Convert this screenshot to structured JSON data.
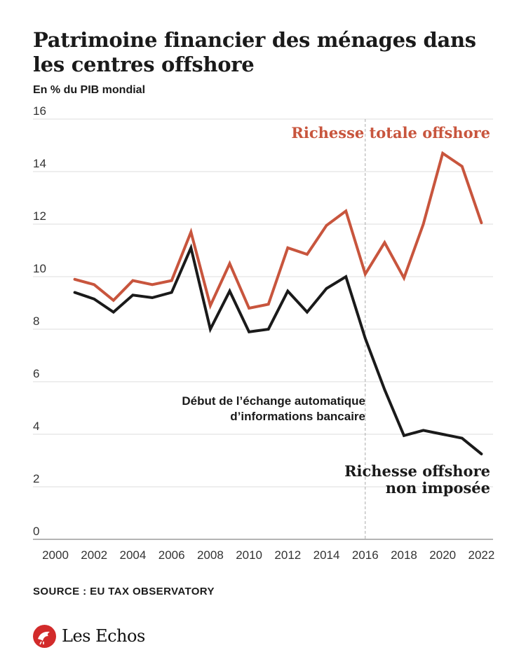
{
  "header": {
    "title": "Patrimoine financier des ménages dans les centres offshore",
    "subtitle": "En % du PIB mondial"
  },
  "chart_data": {
    "type": "line",
    "x_ticks": [
      "2000",
      "2002",
      "2004",
      "2006",
      "2008",
      "2010",
      "2012",
      "2014",
      "2016",
      "2018",
      "2020",
      "2022"
    ],
    "y_ticks": [
      "0",
      "2",
      "4",
      "6",
      "8",
      "10",
      "12",
      "14",
      "16"
    ],
    "xlim": [
      2000,
      2022.6
    ],
    "ylim": [
      0,
      16
    ],
    "grid": "horizontal",
    "series": [
      {
        "name": "Richesse totale offshore",
        "label_lines": [
          "Richesse totale offshore"
        ],
        "color": "#c8553d",
        "x": [
          2001,
          2002,
          2003,
          2004,
          2005,
          2006,
          2007,
          2008,
          2009,
          2010,
          2011,
          2012,
          2013,
          2014,
          2015,
          2016,
          2017,
          2018,
          2019,
          2020,
          2021,
          2022
        ],
        "values": [
          9.9,
          9.7,
          9.1,
          9.85,
          9.7,
          9.85,
          11.7,
          8.9,
          10.5,
          8.8,
          8.95,
          11.1,
          10.85,
          11.95,
          12.5,
          10.1,
          11.3,
          9.95,
          12.0,
          14.7,
          14.2,
          12.05
        ]
      },
      {
        "name": "Richesse offshore non imposée",
        "label_lines": [
          "Richesse offshore",
          "non imposée"
        ],
        "color": "#1a1a1a",
        "x": [
          2001,
          2002,
          2003,
          2004,
          2005,
          2006,
          2007,
          2008,
          2009,
          2010,
          2011,
          2012,
          2013,
          2014,
          2015,
          2016,
          2017,
          2018,
          2019,
          2020,
          2021,
          2022
        ],
        "values": [
          9.4,
          9.15,
          8.65,
          9.3,
          9.2,
          9.4,
          11.1,
          8.0,
          9.45,
          7.9,
          8.0,
          9.45,
          8.65,
          9.55,
          10.0,
          7.65,
          5.7,
          3.95,
          4.15,
          4.0,
          3.85,
          3.25
        ]
      }
    ],
    "annotations": [
      {
        "x": 2016,
        "type": "vertical-dashed-line",
        "label_lines": [
          "Début de l’échange automatique",
          "d’informations bancaire"
        ]
      }
    ]
  },
  "footer": {
    "source": "SOURCE : EU TAX OBSERVATORY",
    "logo_text": "Les Echos",
    "logo_icon": "les-echos-rooster-icon",
    "logo_color": "#d22b2b"
  }
}
